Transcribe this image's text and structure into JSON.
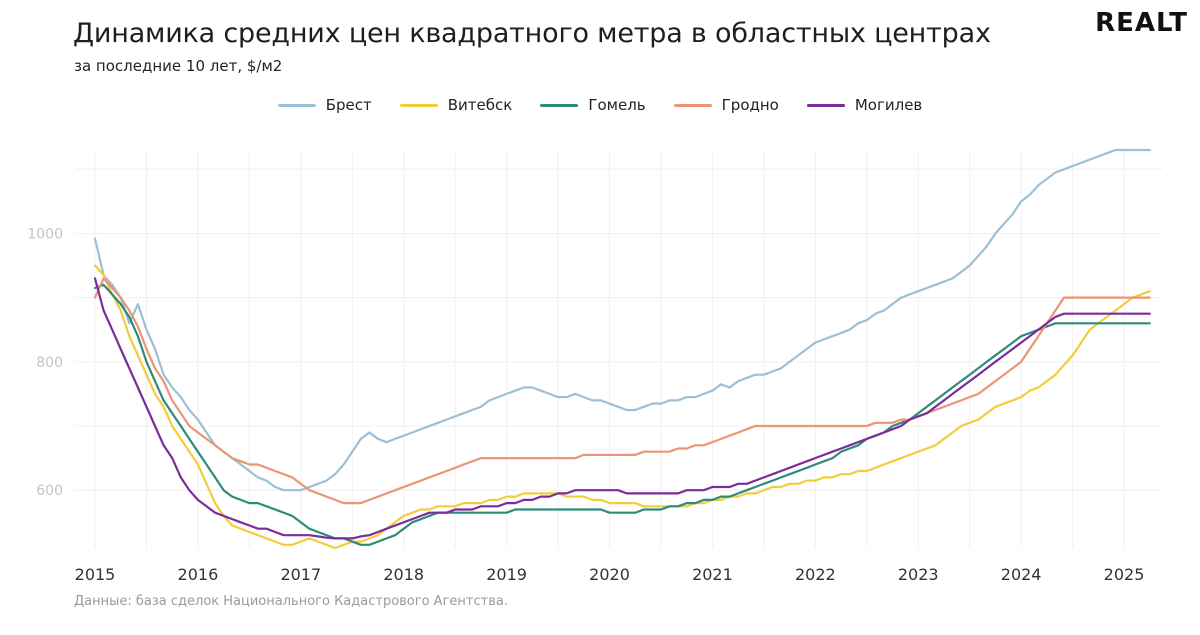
{
  "header": {
    "title": "Динамика средних цен квадратного метра в областных центрах",
    "subtitle": "за последние 10 лет, $/м2",
    "logo": "REALT"
  },
  "source": "Данные: база сделок Национального Кадастрового Агентства.",
  "colors": {
    "Брест": "#9dbfd6",
    "Витебск": "#f2cd3b",
    "Гомель": "#2e8b7a",
    "Гродно": "#ec9473",
    "Могилев": "#7a2c9a",
    "grid": "#f0f0f0",
    "tick": "#c4c4c4"
  },
  "chart_data": {
    "type": "line",
    "title": "Динамика средних цен квадратного метра в областных центрах",
    "subtitle": "за последние 10 лет, $/м2",
    "xlabel": "",
    "ylabel": "",
    "x_start": 2015.0,
    "x_step": 0.0833333,
    "xlim": [
      2015.0,
      2025.33
    ],
    "ylim": [
      510,
      1130
    ],
    "yticks": [
      600,
      800,
      1000
    ],
    "xticks": [
      2015,
      2016,
      2017,
      2018,
      2019,
      2020,
      2021,
      2022,
      2023,
      2024,
      2025
    ],
    "grid": true,
    "legend_position": "top",
    "series": [
      {
        "name": "Брест",
        "values": [
          992,
          935,
          920,
          900,
          860,
          890,
          850,
          820,
          780,
          760,
          745,
          725,
          710,
          690,
          670,
          660,
          650,
          640,
          630,
          620,
          615,
          605,
          600,
          600,
          600,
          605,
          610,
          615,
          625,
          640,
          660,
          680,
          690,
          680,
          675,
          680,
          685,
          690,
          695,
          700,
          705,
          710,
          715,
          720,
          725,
          730,
          740,
          745,
          750,
          755,
          760,
          760,
          755,
          750,
          745,
          745,
          750,
          745,
          740,
          740,
          735,
          730,
          725,
          725,
          730,
          735,
          735,
          740,
          740,
          745,
          745,
          750,
          755,
          765,
          760,
          770,
          775,
          780,
          780,
          785,
          790,
          800,
          810,
          820,
          830,
          835,
          840,
          845,
          850,
          860,
          865,
          875,
          880,
          890,
          900,
          905,
          910,
          915,
          920,
          925,
          930,
          940,
          950,
          965,
          980,
          1000,
          1015,
          1030,
          1050,
          1060,
          1075,
          1085,
          1095,
          1100,
          1105,
          1110,
          1115,
          1120,
          1125,
          1130,
          1130,
          1130,
          1130,
          1130
        ]
      },
      {
        "name": "Витебск",
        "values": [
          950,
          935,
          905,
          880,
          840,
          810,
          780,
          750,
          730,
          700,
          680,
          660,
          640,
          610,
          580,
          560,
          545,
          540,
          535,
          530,
          525,
          520,
          515,
          515,
          520,
          525,
          520,
          515,
          510,
          515,
          520,
          520,
          525,
          530,
          540,
          550,
          560,
          565,
          570,
          570,
          575,
          575,
          575,
          580,
          580,
          580,
          585,
          585,
          590,
          590,
          595,
          595,
          595,
          595,
          595,
          590,
          590,
          590,
          585,
          585,
          580,
          580,
          580,
          580,
          575,
          575,
          575,
          575,
          575,
          575,
          580,
          580,
          585,
          585,
          590,
          590,
          595,
          595,
          600,
          605,
          605,
          610,
          610,
          615,
          615,
          620,
          620,
          625,
          625,
          630,
          630,
          635,
          640,
          645,
          650,
          655,
          660,
          665,
          670,
          680,
          690,
          700,
          705,
          710,
          720,
          730,
          735,
          740,
          745,
          755,
          760,
          770,
          780,
          795,
          810,
          830,
          850,
          860,
          870,
          880,
          890,
          900,
          905,
          910
        ]
      },
      {
        "name": "Гомель",
        "values": [
          915,
          920,
          905,
          890,
          870,
          840,
          800,
          770,
          740,
          720,
          700,
          680,
          660,
          640,
          620,
          600,
          590,
          585,
          580,
          580,
          575,
          570,
          565,
          560,
          550,
          540,
          535,
          530,
          525,
          525,
          520,
          515,
          515,
          520,
          525,
          530,
          540,
          550,
          555,
          560,
          565,
          565,
          565,
          565,
          565,
          565,
          565,
          565,
          565,
          570,
          570,
          570,
          570,
          570,
          570,
          570,
          570,
          570,
          570,
          570,
          565,
          565,
          565,
          565,
          570,
          570,
          570,
          575,
          575,
          580,
          580,
          585,
          585,
          590,
          590,
          595,
          600,
          605,
          610,
          615,
          620,
          625,
          630,
          635,
          640,
          645,
          650,
          660,
          665,
          670,
          680,
          685,
          690,
          700,
          705,
          710,
          720,
          730,
          740,
          750,
          760,
          770,
          780,
          790,
          800,
          810,
          820,
          830,
          840,
          845,
          850,
          855,
          860,
          860,
          860,
          860,
          860,
          860,
          860,
          860,
          860,
          860,
          860,
          860
        ]
      },
      {
        "name": "Гродно",
        "values": [
          900,
          930,
          915,
          900,
          880,
          855,
          820,
          790,
          770,
          740,
          720,
          700,
          690,
          680,
          670,
          660,
          650,
          645,
          640,
          640,
          635,
          630,
          625,
          620,
          610,
          600,
          595,
          590,
          585,
          580,
          580,
          580,
          585,
          590,
          595,
          600,
          605,
          610,
          615,
          620,
          625,
          630,
          635,
          640,
          645,
          650,
          650,
          650,
          650,
          650,
          650,
          650,
          650,
          650,
          650,
          650,
          650,
          655,
          655,
          655,
          655,
          655,
          655,
          655,
          660,
          660,
          660,
          660,
          665,
          665,
          670,
          670,
          675,
          680,
          685,
          690,
          695,
          700,
          700,
          700,
          700,
          700,
          700,
          700,
          700,
          700,
          700,
          700,
          700,
          700,
          700,
          705,
          705,
          705,
          710,
          710,
          715,
          720,
          725,
          730,
          735,
          740,
          745,
          750,
          760,
          770,
          780,
          790,
          800,
          820,
          840,
          860,
          880,
          900,
          900,
          900,
          900,
          900,
          900,
          900,
          900,
          900,
          900,
          900
        ]
      },
      {
        "name": "Могилев",
        "values": [
          930,
          880,
          850,
          820,
          790,
          760,
          730,
          700,
          670,
          650,
          620,
          600,
          585,
          575,
          565,
          560,
          555,
          550,
          545,
          540,
          540,
          535,
          530,
          530,
          530,
          530,
          528,
          526,
          525,
          525,
          525,
          528,
          530,
          535,
          540,
          545,
          550,
          555,
          560,
          565,
          565,
          565,
          570,
          570,
          570,
          575,
          575,
          575,
          580,
          580,
          585,
          585,
          590,
          590,
          595,
          595,
          600,
          600,
          600,
          600,
          600,
          600,
          595,
          595,
          595,
          595,
          595,
          595,
          595,
          600,
          600,
          600,
          605,
          605,
          605,
          610,
          610,
          615,
          620,
          625,
          630,
          635,
          640,
          645,
          650,
          655,
          660,
          665,
          670,
          675,
          680,
          685,
          690,
          695,
          700,
          710,
          715,
          720,
          730,
          740,
          750,
          760,
          770,
          780,
          790,
          800,
          810,
          820,
          830,
          840,
          850,
          860,
          870,
          875,
          875,
          875,
          875,
          875,
          875,
          875,
          875,
          875,
          875,
          875
        ]
      }
    ]
  }
}
